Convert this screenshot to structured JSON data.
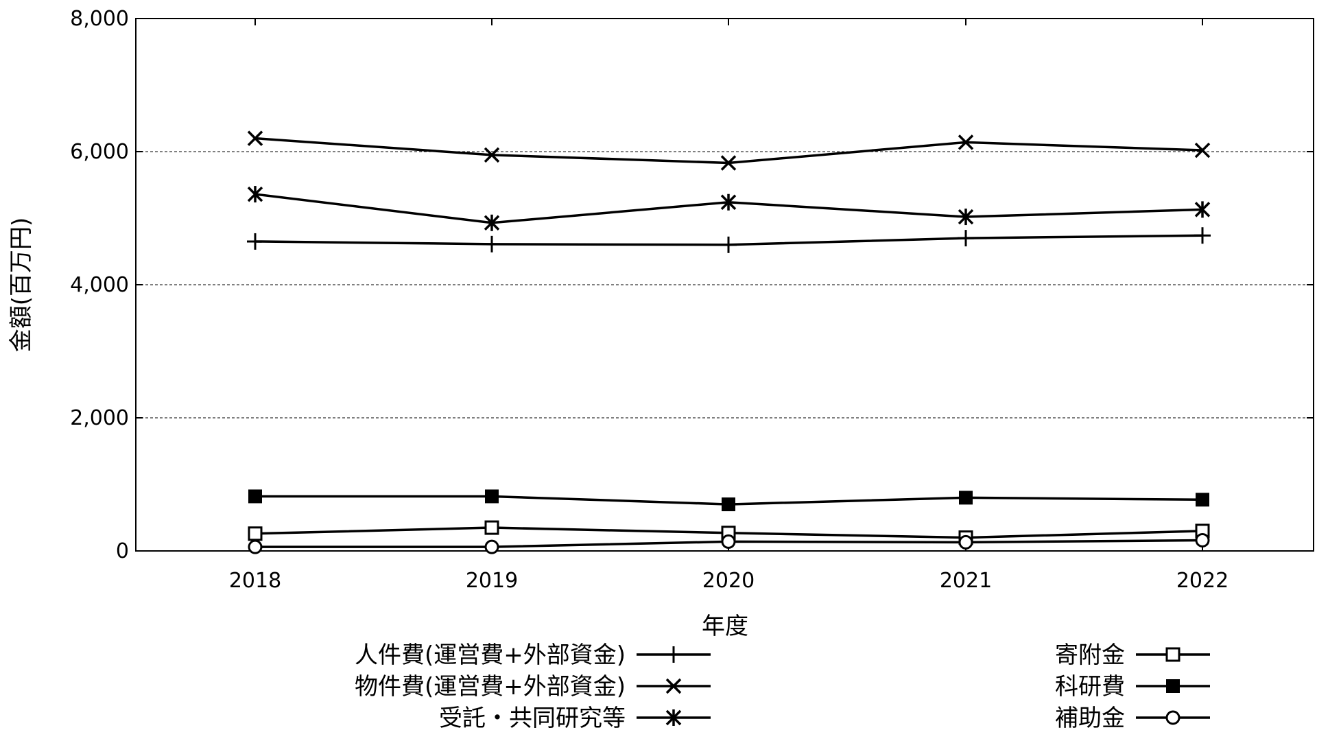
{
  "chart_data": {
    "type": "line",
    "title": "",
    "xlabel": "年度",
    "ylabel": "金額(百万円)",
    "x": [
      "2018",
      "2019",
      "2020",
      "2021",
      "2022"
    ],
    "y_ticks": [
      "0",
      "2,000",
      "4,000",
      "6,000",
      "8,000"
    ],
    "ylim": [
      0,
      8000
    ],
    "grid": "horizontal dashed",
    "legend_position": "bottom",
    "series": [
      {
        "name": "人件費(運営費+外部資金)",
        "marker": "plus",
        "values": [
          4650,
          4610,
          4600,
          4700,
          4740
        ]
      },
      {
        "name": "物件費(運営費+外部資金)",
        "marker": "cross",
        "values": [
          6200,
          5950,
          5830,
          6140,
          6020
        ]
      },
      {
        "name": "受託・共同研究等",
        "marker": "asterisk",
        "values": [
          5360,
          4930,
          5240,
          5020,
          5130
        ]
      },
      {
        "name": "寄附金",
        "marker": "open-square",
        "values": [
          260,
          350,
          270,
          200,
          300
        ]
      },
      {
        "name": "科研費",
        "marker": "filled-square",
        "values": [
          820,
          820,
          700,
          800,
          770
        ]
      },
      {
        "name": "補助金",
        "marker": "open-circle",
        "values": [
          60,
          60,
          140,
          130,
          160
        ]
      }
    ],
    "colors": {
      "line": "#000000",
      "grid": "#000000",
      "background": "#ffffff"
    }
  }
}
